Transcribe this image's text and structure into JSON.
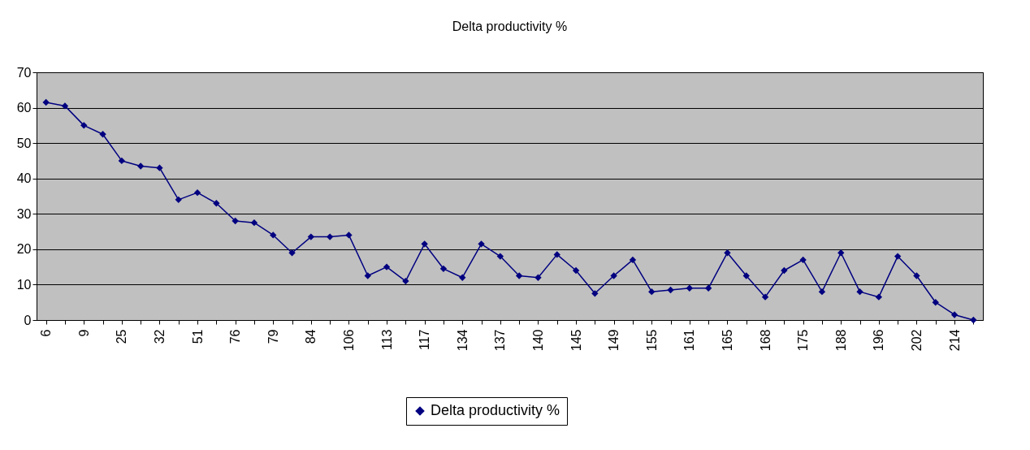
{
  "chart_data": {
    "type": "line",
    "title": "Delta productivity %",
    "categories": [
      "6",
      null,
      "9",
      null,
      "25",
      null,
      "32",
      null,
      "51",
      null,
      "76",
      null,
      "79",
      null,
      "84",
      null,
      "106",
      null,
      "113",
      null,
      "117",
      null,
      "134",
      null,
      "137",
      null,
      "140",
      null,
      "145",
      null,
      "149",
      null,
      "155",
      null,
      "161",
      null,
      "165",
      null,
      "168",
      null,
      "175",
      null,
      "188",
      null,
      "196",
      null,
      "202",
      null,
      "214",
      null
    ],
    "series": [
      {
        "name": "Delta productivity %",
        "color": "#000080",
        "values": [
          61.5,
          60.5,
          55,
          52.5,
          45,
          43.5,
          43,
          34,
          36,
          33,
          28,
          27.5,
          24,
          19,
          23.5,
          23.5,
          24,
          12.5,
          15,
          11,
          21.5,
          14.5,
          12,
          21.5,
          18,
          12.5,
          12,
          18.5,
          14,
          7.5,
          12.5,
          17,
          8,
          8.5,
          9,
          9,
          19,
          12.5,
          6.5,
          14,
          17,
          8,
          19,
          8,
          6.5,
          18,
          12.5,
          5,
          1.5,
          0
        ]
      }
    ],
    "ylim": [
      0,
      70
    ],
    "yticks": [
      0,
      10,
      20,
      30,
      40,
      50,
      60,
      70
    ],
    "grid": "y",
    "legend": "bottom",
    "marker": "diamond",
    "line_style": "solid"
  }
}
